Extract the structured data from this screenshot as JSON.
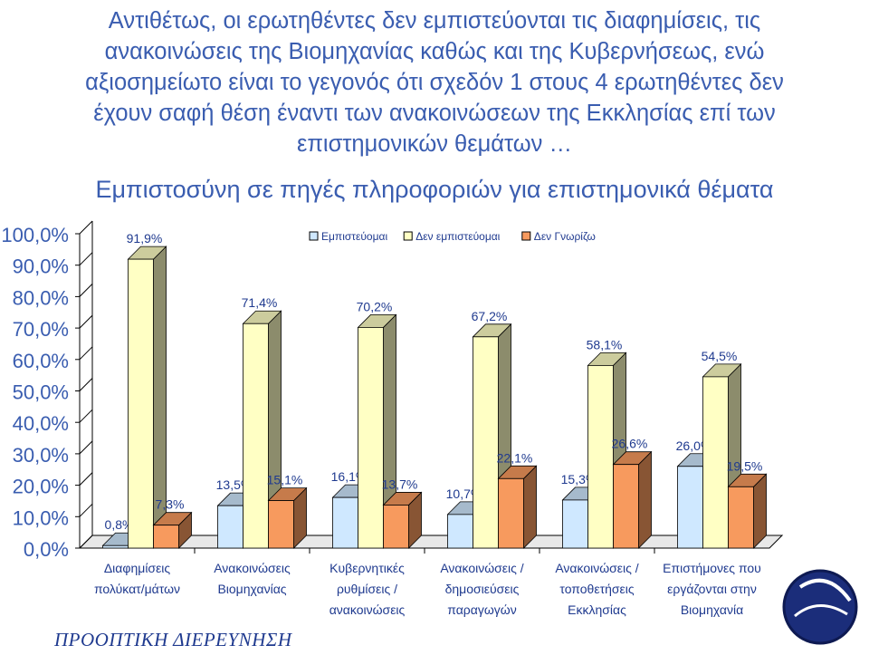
{
  "slide": {
    "title_lines": [
      "Αντιθέτως, οι ερωτηθέντες δεν εμπιστεύονται τις διαφημίσεις, τις",
      "ανακοινώσεις της Βιομηχανίας καθώς και της Κυβερνήσεως, ενώ",
      "αξιοσημείωτο είναι το γεγονός ότι σχεδόν 1 στους 4 ερωτηθέντες δεν",
      "έχουν σαφή θέση έναντι των ανακοινώσεων της Εκκλησίας επί των",
      "επιστημονικών θεμάτων …"
    ],
    "footer_brand": "ΠΡΟΟΠΤΙΚΗ ΔΙΕΡΕΥΝΗΣΗ",
    "logo_text": "ΠΡΟΟΠΤΙΚΗ ΔΙΕΡΕΥΝΗΣΗ"
  },
  "colors": {
    "title": "#3a5db0",
    "series": [
      "#cfe8ff",
      "#ffffc4",
      "#f79a5e"
    ]
  },
  "chart_data": {
    "type": "bar",
    "title": "Εμπιστοσύνη σε πηγές πληροφοριών για επιστημονικά θέματα",
    "legend_position": "top-center",
    "categories": [
      [
        "Διαφημίσεις",
        "πολύκατ/μάτων"
      ],
      [
        "Ανακοινώσεις",
        "Βιομηχανίας"
      ],
      [
        "Κυβερνητικές",
        "ρυθμίσεις /",
        "ανακοινώσεις"
      ],
      [
        "Ανακοινώσεις /",
        "δημοσιεύσεις",
        "παραγωγών"
      ],
      [
        "Ανακοινώσεις /",
        "τοποθετήσεις",
        "Εκκλησίας"
      ],
      [
        "Επιστήμονες που",
        "εργάζονται στην",
        "Βιομηχανία"
      ]
    ],
    "series": [
      {
        "name": "Εμπιστεύομαι",
        "values": [
          0.8,
          13.5,
          16.1,
          10.7,
          15.3,
          26.0
        ],
        "labels": [
          "0,8%",
          "13,5%",
          "16,1%",
          "10,7%",
          "15,3%",
          "26,0%"
        ]
      },
      {
        "name": "Δεν εμπιστεύομαι",
        "values": [
          91.9,
          71.4,
          70.2,
          67.2,
          58.1,
          54.5
        ],
        "labels": [
          "91,9%",
          "71,4%",
          "70,2%",
          "67,2%",
          "58,1%",
          "54,5%"
        ]
      },
      {
        "name": "Δεν Γνωρίζω",
        "values": [
          7.3,
          15.1,
          13.7,
          22.1,
          26.6,
          19.5
        ],
        "labels": [
          "7,3%",
          "15,1%",
          "13,7%",
          "22,1%",
          "26,6%",
          "19,5%"
        ]
      }
    ],
    "y_ticks": [
      "0,0%",
      "10,0%",
      "20,0%",
      "30,0%",
      "40,0%",
      "50,0%",
      "60,0%",
      "70,0%",
      "80,0%",
      "90,0%",
      "100,0%"
    ],
    "ylim": [
      0,
      100
    ],
    "grid": false
  }
}
